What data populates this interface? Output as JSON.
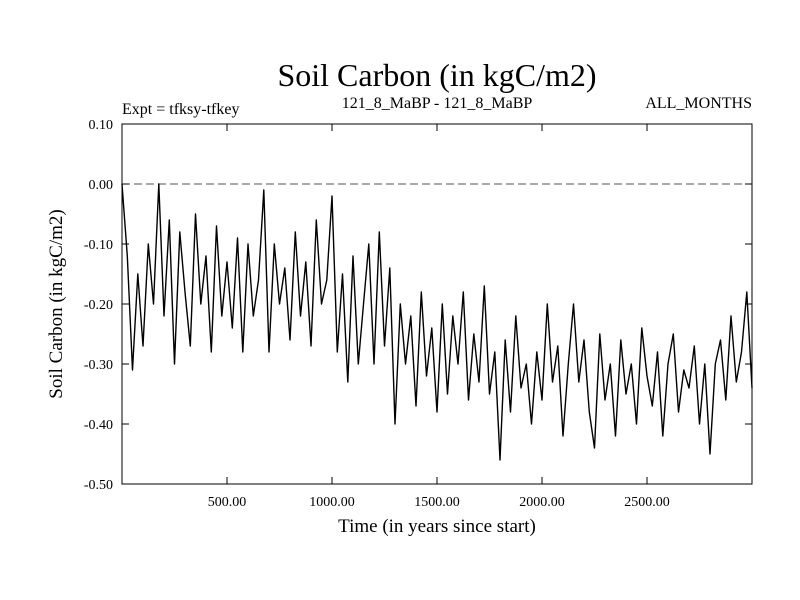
{
  "chart_data": {
    "type": "line",
    "title": "Soil Carbon (in kgC/m2)",
    "subtitle_left": "Expt = tfksy-tfkey",
    "subtitle_center": "121_8_MaBP - 121_8_MaBP",
    "subtitle_right": "ALL_MONTHS",
    "xlabel": "Time (in years since start)",
    "ylabel": "Soil Carbon (in kgC/m2)",
    "xlim": [
      0,
      3000
    ],
    "ylim": [
      -0.5,
      0.1
    ],
    "x_ticks": [
      500,
      1000,
      1500,
      2000,
      2500
    ],
    "x_tick_labels": [
      "500.00",
      "1000.00",
      "1500.00",
      "2000.00",
      "2500.00"
    ],
    "y_ticks": [
      0.1,
      0.0,
      -0.1,
      -0.2,
      -0.3,
      -0.4,
      -0.5
    ],
    "y_tick_labels": [
      "0.10",
      "0.00",
      "-0.10",
      "-0.20",
      "-0.30",
      "-0.40",
      "-0.50"
    ],
    "reference_line": {
      "y": 0.0,
      "style": "dashed"
    },
    "series": [
      {
        "name": "Soil Carbon",
        "x": [
          0,
          25,
          50,
          75,
          100,
          125,
          150,
          175,
          200,
          225,
          250,
          275,
          300,
          325,
          350,
          375,
          400,
          425,
          450,
          475,
          500,
          525,
          550,
          575,
          600,
          625,
          650,
          675,
          700,
          725,
          750,
          775,
          800,
          825,
          850,
          875,
          900,
          925,
          950,
          975,
          1000,
          1025,
          1050,
          1075,
          1100,
          1125,
          1150,
          1175,
          1200,
          1225,
          1250,
          1275,
          1300,
          1325,
          1350,
          1375,
          1400,
          1425,
          1450,
          1475,
          1500,
          1525,
          1550,
          1575,
          1600,
          1625,
          1650,
          1675,
          1700,
          1725,
          1750,
          1775,
          1800,
          1825,
          1850,
          1875,
          1900,
          1925,
          1950,
          1975,
          2000,
          2025,
          2050,
          2075,
          2100,
          2125,
          2150,
          2175,
          2200,
          2225,
          2250,
          2275,
          2300,
          2325,
          2350,
          2375,
          2400,
          2425,
          2450,
          2475,
          2500,
          2525,
          2550,
          2575,
          2600,
          2625,
          2650,
          2675,
          2700,
          2725,
          2750,
          2775,
          2800,
          2825,
          2850,
          2875,
          2900,
          2925,
          2950,
          2975,
          3000
        ],
        "values": [
          0.0,
          -0.12,
          -0.31,
          -0.15,
          -0.27,
          -0.1,
          -0.2,
          0.0,
          -0.22,
          -0.06,
          -0.3,
          -0.08,
          -0.18,
          -0.27,
          -0.05,
          -0.2,
          -0.12,
          -0.28,
          -0.07,
          -0.22,
          -0.13,
          -0.24,
          -0.09,
          -0.28,
          -0.1,
          -0.22,
          -0.16,
          -0.01,
          -0.28,
          -0.1,
          -0.2,
          -0.14,
          -0.26,
          -0.08,
          -0.22,
          -0.13,
          -0.27,
          -0.06,
          -0.2,
          -0.16,
          -0.02,
          -0.28,
          -0.15,
          -0.33,
          -0.12,
          -0.3,
          -0.2,
          -0.1,
          -0.3,
          -0.08,
          -0.27,
          -0.14,
          -0.4,
          -0.2,
          -0.3,
          -0.22,
          -0.37,
          -0.18,
          -0.32,
          -0.24,
          -0.38,
          -0.2,
          -0.35,
          -0.22,
          -0.3,
          -0.18,
          -0.36,
          -0.25,
          -0.33,
          -0.17,
          -0.35,
          -0.28,
          -0.46,
          -0.26,
          -0.38,
          -0.22,
          -0.34,
          -0.3,
          -0.4,
          -0.28,
          -0.36,
          -0.2,
          -0.33,
          -0.27,
          -0.42,
          -0.3,
          -0.2,
          -0.33,
          -0.26,
          -0.38,
          -0.44,
          -0.25,
          -0.36,
          -0.3,
          -0.42,
          -0.26,
          -0.35,
          -0.3,
          -0.4,
          -0.24,
          -0.32,
          -0.37,
          -0.28,
          -0.42,
          -0.3,
          -0.25,
          -0.38,
          -0.31,
          -0.34,
          -0.27,
          -0.4,
          -0.3,
          -0.45,
          -0.3,
          -0.26,
          -0.36,
          -0.22,
          -0.33,
          -0.28,
          -0.18,
          -0.34
        ]
      }
    ]
  }
}
